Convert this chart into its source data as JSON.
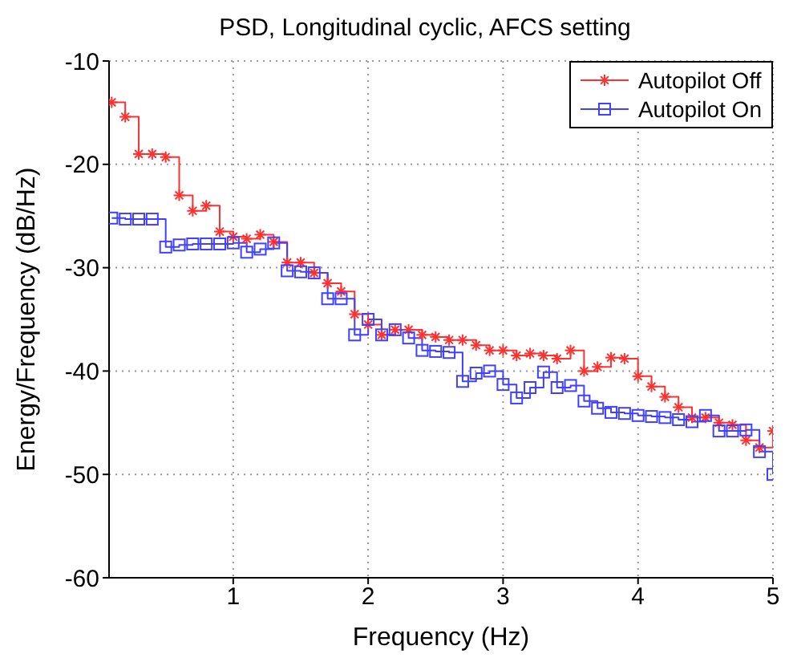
{
  "chart_data": {
    "type": "step",
    "title": "PSD, Longitudinal cyclic, AFCS setting",
    "xlabel": "Frequency (Hz)",
    "ylabel": "Energy/Frequency (dB/Hz)",
    "x": [
      0.1,
      0.2,
      0.3,
      0.4,
      0.5,
      0.6,
      0.7,
      0.8,
      0.9,
      1.0,
      1.1,
      1.2,
      1.3,
      1.4,
      1.5,
      1.6,
      1.7,
      1.8,
      1.9,
      2.0,
      2.1,
      2.2,
      2.3,
      2.4,
      2.5,
      2.6,
      2.7,
      2.8,
      2.9,
      3.0,
      3.1,
      3.2,
      3.3,
      3.4,
      3.5,
      3.6,
      3.7,
      3.8,
      3.9,
      4.0,
      4.1,
      4.2,
      4.3,
      4.4,
      4.5,
      4.6,
      4.7,
      4.8,
      4.9,
      5.0
    ],
    "series": [
      {
        "name": "Autopilot Off",
        "color": "#ff3030",
        "marker": "cross",
        "values": [
          -14,
          -15.4,
          -19,
          -19,
          -19.3,
          -23,
          -24.5,
          -24,
          -26.5,
          -27,
          -27.2,
          -26.8,
          -27.5,
          -29.5,
          -29.5,
          -30.5,
          -31.5,
          -32.3,
          -34.5,
          -35.5,
          -36.5,
          -36,
          -36,
          -36.5,
          -36.7,
          -37,
          -37,
          -37.5,
          -38,
          -38,
          -38.5,
          -38.3,
          -38.5,
          -38.8,
          -38,
          -40,
          -39.6,
          -38.7,
          -38.8,
          -40.5,
          -41.5,
          -42.5,
          -43.5,
          -44.5,
          -44.5,
          -45,
          -45.2,
          -46.7,
          -47.4,
          -45.8
        ]
      },
      {
        "name": "Autopilot On",
        "color": "#4040ff",
        "marker": "square",
        "values": [
          -25.2,
          -25.3,
          -25.3,
          -25.3,
          -28,
          -27.8,
          -27.7,
          -27.7,
          -27.7,
          -27.6,
          -28.5,
          -28.2,
          -27.6,
          -30.3,
          -30.4,
          -30.5,
          -33,
          -33,
          -36.5,
          -35,
          -36.5,
          -36,
          -36.8,
          -38,
          -38.1,
          -38.2,
          -41,
          -40.2,
          -40,
          -41.3,
          -42.6,
          -41.6,
          -40.1,
          -41.6,
          -41.4,
          -42.9,
          -43.6,
          -44,
          -44.1,
          -44.3,
          -44.4,
          -44.5,
          -44.7,
          -44.9,
          -44.3,
          -45.8,
          -45.8,
          -45.7,
          -47.8,
          -50
        ]
      }
    ],
    "xlim": [
      0.08,
      5
    ],
    "xticks": [
      1,
      2,
      3,
      4,
      5
    ],
    "ylim": [
      -60,
      -10
    ],
    "yticks": [
      -60,
      -50,
      -40,
      -30,
      -20,
      -10
    ],
    "grid": true,
    "legend": "top right"
  }
}
